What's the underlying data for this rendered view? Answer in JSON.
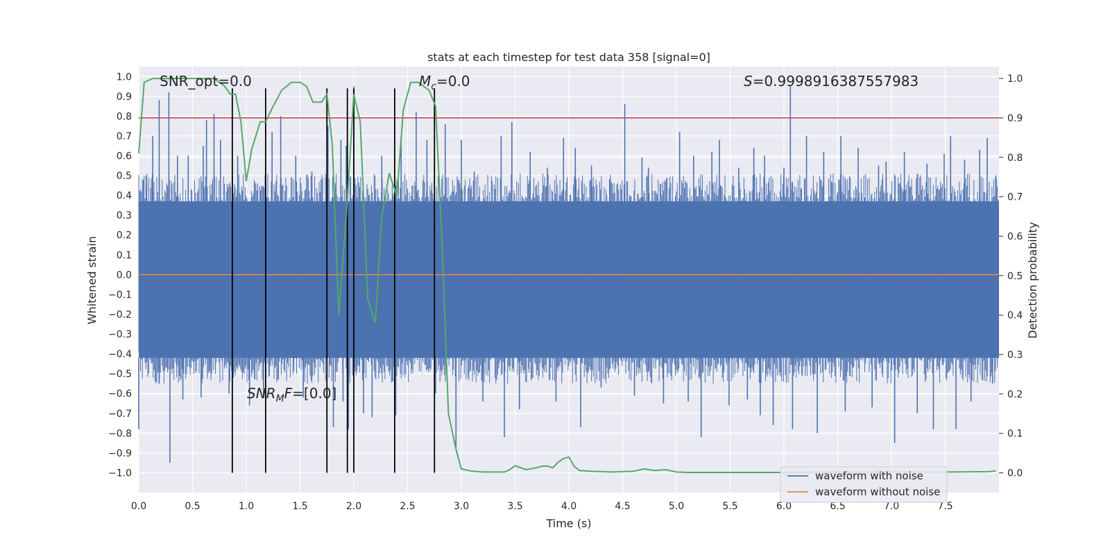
{
  "chart_data": {
    "type": "line",
    "title": "stats at each timestep for test data 358 [signal=0]",
    "xlabel": "Time (s)",
    "ylabel": "Whitened strain",
    "y2label": "Detection probability",
    "xlim": [
      0,
      8
    ],
    "ylim": [
      -1.1,
      1.05
    ],
    "y2lim": [
      -0.05,
      1.03
    ],
    "xticks": [
      "0.0",
      "0.5",
      "1.0",
      "1.5",
      "2.0",
      "2.5",
      "3.0",
      "3.5",
      "4.0",
      "4.5",
      "5.0",
      "5.5",
      "6.0",
      "6.5",
      "7.0",
      "7.5"
    ],
    "yticks": [
      "1.0",
      "0.9",
      "0.8",
      "0.7",
      "0.6",
      "0.5",
      "0.4",
      "0.3",
      "0.2",
      "0.1",
      "0.0",
      "−0.1",
      "−0.2",
      "−0.3",
      "−0.4",
      "−0.5",
      "−0.6",
      "−0.7",
      "−0.8",
      "−0.9",
      "−1.0"
    ],
    "y2ticks": [
      "1.0",
      "0.9",
      "0.8",
      "0.7",
      "0.6",
      "0.5",
      "0.4",
      "0.3",
      "0.2",
      "0.1",
      "0.0"
    ],
    "grid": true,
    "legend_position": "lower-right",
    "colors": {
      "noise": "#4c72b0",
      "clean": "#dd8452",
      "prob": "#55a868",
      "threshold": "#c44e52",
      "vline": "#000000",
      "background": "#eaeaf2",
      "grid": "#ffffff"
    },
    "series": [
      {
        "name": "waveform with noise",
        "noise_band": [
          -0.42,
          0.37
        ],
        "spikes": [
          [
            0.0,
            -0.78
          ],
          [
            0.07,
            0.45
          ],
          [
            0.13,
            0.7
          ],
          [
            0.19,
            0.88
          ],
          [
            0.19,
            -0.55
          ],
          [
            0.28,
            0.92
          ],
          [
            0.29,
            -0.95
          ],
          [
            0.36,
            0.6
          ],
          [
            0.41,
            -0.63
          ],
          [
            0.46,
            0.6
          ],
          [
            0.58,
            -0.62
          ],
          [
            0.6,
            0.65
          ],
          [
            0.63,
            0.78
          ],
          [
            0.67,
            -0.45
          ],
          [
            0.7,
            0.81
          ],
          [
            0.76,
            0.68
          ],
          [
            0.84,
            -0.6
          ],
          [
            0.92,
            0.6
          ],
          [
            1.03,
            -0.66
          ],
          [
            1.16,
            -0.62
          ],
          [
            1.24,
            0.72
          ],
          [
            1.32,
            0.8
          ],
          [
            1.46,
            0.6
          ],
          [
            1.53,
            -0.62
          ],
          [
            1.61,
            0.52
          ],
          [
            1.76,
            0.75
          ],
          [
            1.81,
            -0.77
          ],
          [
            1.88,
            0.68
          ],
          [
            1.9,
            -0.64
          ],
          [
            1.93,
            0.65
          ],
          [
            1.95,
            -0.78
          ],
          [
            2.0,
            0.95
          ],
          [
            2.09,
            -0.7
          ],
          [
            2.17,
            -0.72
          ],
          [
            2.26,
            0.6
          ],
          [
            2.39,
            -0.71
          ],
          [
            2.44,
            0.7
          ],
          [
            2.58,
            0.82
          ],
          [
            2.68,
            0.68
          ],
          [
            2.76,
            -0.6
          ],
          [
            2.85,
            0.76
          ],
          [
            2.95,
            -0.87
          ],
          [
            3.0,
            0.68
          ],
          [
            3.12,
            0.52
          ],
          [
            3.2,
            -0.64
          ],
          [
            3.37,
            0.7
          ],
          [
            3.4,
            -0.82
          ],
          [
            3.47,
            0.77
          ],
          [
            3.54,
            -0.68
          ],
          [
            3.64,
            0.62
          ],
          [
            3.8,
            0.54
          ],
          [
            3.88,
            -0.64
          ],
          [
            3.95,
            0.69
          ],
          [
            4.06,
            0.64
          ],
          [
            4.11,
            -0.77
          ],
          [
            4.21,
            0.55
          ],
          [
            4.3,
            -0.57
          ],
          [
            4.38,
            0.48
          ],
          [
            4.52,
            0.86
          ],
          [
            4.61,
            -0.61
          ],
          [
            4.68,
            0.59
          ],
          [
            4.74,
            0.54
          ],
          [
            4.88,
            -0.65
          ],
          [
            5.03,
            0.72
          ],
          [
            5.11,
            -0.64
          ],
          [
            5.16,
            0.6
          ],
          [
            5.23,
            -0.82
          ],
          [
            5.33,
            0.62
          ],
          [
            5.4,
            0.68
          ],
          [
            5.49,
            -0.66
          ],
          [
            5.58,
            0.54
          ],
          [
            5.66,
            -0.63
          ],
          [
            5.72,
            0.64
          ],
          [
            5.78,
            -0.71
          ],
          [
            5.82,
            0.6
          ],
          [
            5.9,
            -0.76
          ],
          [
            6.0,
            0.54
          ],
          [
            6.06,
            0.95
          ],
          [
            6.08,
            -0.78
          ],
          [
            6.21,
            0.7
          ],
          [
            6.31,
            -0.8
          ],
          [
            6.37,
            0.62
          ],
          [
            6.53,
            0.7
          ],
          [
            6.57,
            -0.69
          ],
          [
            6.69,
            0.64
          ],
          [
            6.82,
            -0.67
          ],
          [
            6.88,
            0.55
          ],
          [
            6.95,
            0.57
          ],
          [
            7.03,
            -0.85
          ],
          [
            7.12,
            0.62
          ],
          [
            7.24,
            -0.7
          ],
          [
            7.33,
            0.56
          ],
          [
            7.39,
            -0.78
          ],
          [
            7.49,
            0.61
          ],
          [
            7.55,
            0.7
          ],
          [
            7.6,
            -0.78
          ],
          [
            7.68,
            0.58
          ],
          [
            7.74,
            -0.64
          ],
          [
            7.82,
            0.63
          ],
          [
            7.89,
            0.69
          ],
          [
            7.94,
            -0.55
          ],
          [
            7.97,
            0.5
          ]
        ]
      },
      {
        "name": "waveform without noise",
        "x": [
          0,
          8
        ],
        "y": [
          0.0,
          0.0
        ]
      },
      {
        "x": [
          0.0,
          0.05,
          0.13,
          0.2,
          0.3,
          0.4,
          0.5,
          0.6,
          0.7,
          0.8,
          0.85,
          0.9,
          0.95,
          1.0,
          1.05,
          1.13,
          1.18,
          1.25,
          1.33,
          1.42,
          1.5,
          1.56,
          1.62,
          1.7,
          1.75,
          1.8,
          1.86,
          1.93,
          2.0,
          2.06,
          2.13,
          2.2,
          2.26,
          2.33,
          2.4,
          2.46,
          2.53,
          2.6,
          2.7,
          2.76,
          2.82,
          2.88,
          2.95,
          3.0,
          3.1,
          3.2,
          3.4,
          3.45,
          3.5,
          3.6,
          3.7,
          3.75,
          3.8,
          3.85,
          3.9,
          3.95,
          4.0,
          4.05,
          4.1,
          4.2,
          4.4,
          4.6,
          4.7,
          4.8,
          4.9,
          5.0,
          5.1,
          5.5,
          6.0,
          6.5,
          7.0,
          7.5,
          7.9,
          7.97
        ],
        "y": [
          0.81,
          0.99,
          1.0,
          1.0,
          1.0,
          1.0,
          1.0,
          1.0,
          1.0,
          0.98,
          0.96,
          0.96,
          0.89,
          0.74,
          0.82,
          0.89,
          0.89,
          0.93,
          0.97,
          0.99,
          0.99,
          0.98,
          0.94,
          0.94,
          0.96,
          0.83,
          0.4,
          0.65,
          0.96,
          0.89,
          0.44,
          0.38,
          0.65,
          0.76,
          0.7,
          0.92,
          0.99,
          0.99,
          0.97,
          0.93,
          0.59,
          0.15,
          0.06,
          0.01,
          0.004,
          0.002,
          0.002,
          0.008,
          0.018,
          0.008,
          0.013,
          0.017,
          0.017,
          0.013,
          0.027,
          0.036,
          0.04,
          0.016,
          0.006,
          0.004,
          0.002,
          0.004,
          0.01,
          0.006,
          0.008,
          0.002,
          0.001,
          0.001,
          0.001,
          0.002,
          0.002,
          0.002,
          0.003,
          0.005
        ]
      }
    ],
    "threshold_y2": 0.9,
    "vlines_x": [
      0.87,
      1.18,
      1.75,
      1.94,
      2.0,
      2.38,
      2.75
    ],
    "annotations": {
      "snr_opt": "SNR_opt=0.0",
      "mc_sym": "M",
      "mc_sub": "c",
      "mc_val": "=0.0",
      "s_sym": "S",
      "s_val": "=0.9998916387557983",
      "snrmf_sym": "SNR",
      "snrmf_sub": "M",
      "snrmf_f": "F",
      "snrmf_val": "=[0.0]"
    }
  }
}
